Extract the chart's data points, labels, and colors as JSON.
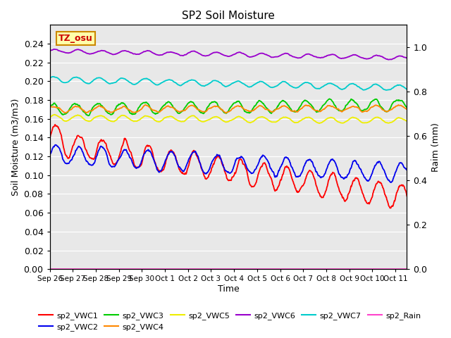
{
  "title": "SP2 Soil Moisture",
  "xlabel": "Time",
  "ylabel_left": "Soil Moisture (m3/m3)",
  "ylabel_right": "Raim (mm)",
  "xlim_days": [
    0,
    15.5
  ],
  "ylim_left": [
    0.0,
    0.26
  ],
  "ylim_right": [
    0.0,
    1.1
  ],
  "x_tick_labels": [
    "Sep 26",
    "Sep 27",
    "Sep 28",
    "Sep 29",
    "Sep 30",
    "Oct 1",
    "Oct 2",
    "Oct 3",
    "Oct 4",
    "Oct 5",
    "Oct 6",
    "Oct 7",
    "Oct 8",
    "Oct 9",
    "Oct 10",
    "Oct 11"
  ],
  "x_tick_positions": [
    0,
    1,
    2,
    3,
    4,
    5,
    6,
    7,
    8,
    9,
    10,
    11,
    12,
    13,
    14,
    15
  ],
  "left_tick_positions": [
    0.0,
    0.02,
    0.04,
    0.06,
    0.08,
    0.1,
    0.12,
    0.14,
    0.16,
    0.18,
    0.2,
    0.22,
    0.24
  ],
  "right_tick_positions": [
    0.0,
    0.2,
    0.4,
    0.6,
    0.8,
    1.0
  ],
  "right_tick_labels": [
    "0.0",
    "0.2",
    "0.4",
    "0.6",
    "0.8",
    "1.0"
  ],
  "background_color": "#e8e8e8",
  "series_colors": {
    "sp2_VWC1": "#ff0000",
    "sp2_VWC2": "#0000ee",
    "sp2_VWC3": "#00cc00",
    "sp2_VWC4": "#ff8800",
    "sp2_VWC5": "#eeee00",
    "sp2_VWC6": "#9900cc",
    "sp2_VWC7": "#00cccc",
    "sp2_Rain": "#ff44cc"
  },
  "annotation_text": "TZ_osu",
  "annotation_color": "#cc0000",
  "annotation_bg": "#ffffaa",
  "annotation_border": "#cc8800",
  "legend_labels_row1": [
    "sp2_VWC1",
    "sp2_VWC2",
    "sp2_VWC3",
    "sp2_VWC4",
    "sp2_VWC5",
    "sp2_VWC6"
  ],
  "legend_labels_row2": [
    "sp2_VWC7",
    "sp2_Rain"
  ]
}
